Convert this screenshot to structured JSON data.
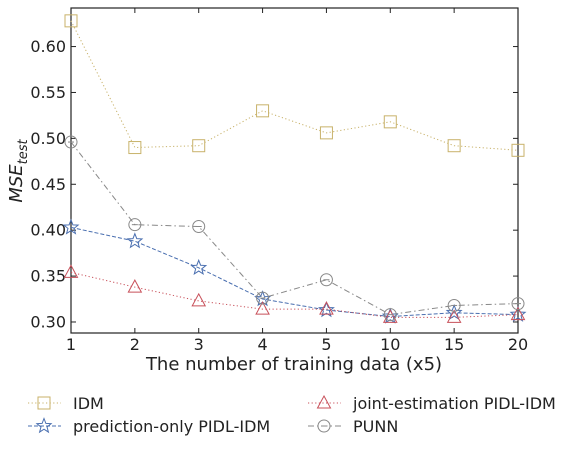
{
  "chart_data": {
    "type": "line",
    "xlabel": "The number of training data (x5)",
    "ylabel_main": "MSE",
    "ylabel_sub": "test",
    "categories": [
      "1",
      "2",
      "3",
      "4",
      "5",
      "10",
      "15",
      "20"
    ],
    "y_ticks": [
      "0.30",
      "0.35",
      "0.40",
      "0.45",
      "0.50",
      "0.55",
      "0.60"
    ],
    "ylim": [
      0.288,
      0.642
    ],
    "grid": false,
    "legend_position": "bottom",
    "series": [
      {
        "name": "IDM",
        "color": "#c8b26a",
        "marker": "square",
        "dash": "dotted",
        "values": [
          0.628,
          0.49,
          0.492,
          0.53,
          0.506,
          0.518,
          0.492,
          0.487
        ]
      },
      {
        "name": "prediction-only PIDL-IDM",
        "color": "#4a6fb0",
        "marker": "star",
        "dash": "dashed",
        "values": [
          0.403,
          0.388,
          0.359,
          0.325,
          0.313,
          0.306,
          0.31,
          0.308
        ]
      },
      {
        "name": "joint-estimation PIDL-IDM",
        "color": "#c8505a",
        "marker": "triangle",
        "dash": "dotted",
        "values": [
          0.354,
          0.338,
          0.323,
          0.314,
          0.314,
          0.305,
          0.305,
          0.308
        ]
      },
      {
        "name": "PUNN",
        "color": "#888888",
        "marker": "circle",
        "dash": "dashdot",
        "values": [
          0.496,
          0.406,
          0.404,
          0.326,
          0.346,
          0.308,
          0.318,
          0.32
        ]
      }
    ]
  }
}
